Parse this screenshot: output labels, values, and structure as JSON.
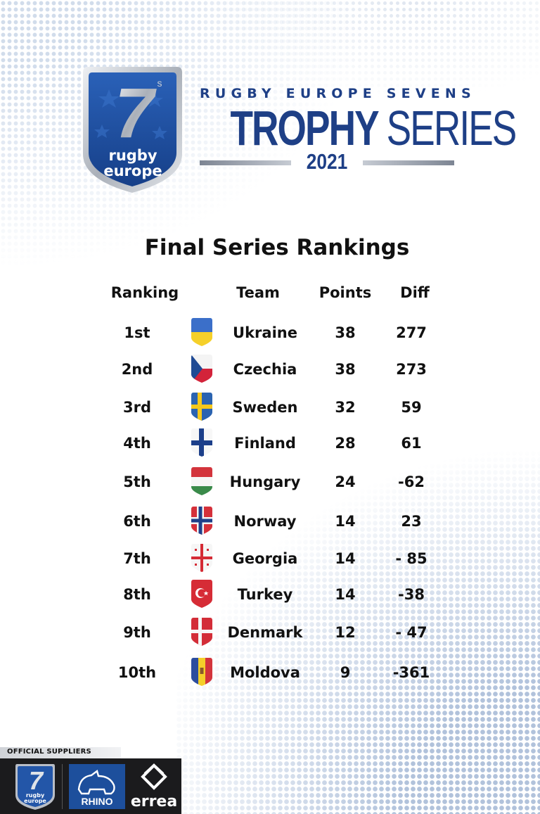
{
  "brand": {
    "badge_numeral": "7",
    "badge_superscript": "s",
    "badge_line1": "rugby",
    "badge_line2": "europe",
    "series_kicker": "RUGBY EUROPE SEVENS",
    "title_bold": "TROPHY",
    "title_light": "SERIES",
    "year": "2021"
  },
  "page_title": "Final Series Rankings",
  "table": {
    "headers": {
      "ranking": "Ranking",
      "team": "Team",
      "points": "Points",
      "diff": "Diff"
    },
    "rows": [
      {
        "rank": "1st",
        "team": "Ukraine",
        "points": "38",
        "diff": "277",
        "flag": "ukraine-flag"
      },
      {
        "rank": "2nd",
        "team": "Czechia",
        "points": "38",
        "diff": "273",
        "flag": "czechia-flag"
      },
      {
        "rank": "3rd",
        "team": "Sweden",
        "points": "32",
        "diff": "59",
        "flag": "sweden-flag"
      },
      {
        "rank": "4th",
        "team": "Finland",
        "points": "28",
        "diff": "61",
        "flag": "finland-flag"
      },
      {
        "rank": "5th",
        "team": "Hungary",
        "points": "24",
        "diff": "-62",
        "flag": "hungary-flag"
      },
      {
        "rank": "6th",
        "team": "Norway",
        "points": "14",
        "diff": "23",
        "flag": "norway-flag"
      },
      {
        "rank": "7th",
        "team": "Georgia",
        "points": "14",
        "diff": "- 85",
        "flag": "georgia-flag"
      },
      {
        "rank": "8th",
        "team": "Turkey",
        "points": "14",
        "diff": "-38",
        "flag": "turkey-flag"
      },
      {
        "rank": "9th",
        "team": "Denmark",
        "points": "12",
        "diff": "- 47",
        "flag": "denmark-flag"
      },
      {
        "rank": "10th",
        "team": "Moldova",
        "points": "9",
        "diff": "-361",
        "flag": "moldova-flag"
      }
    ]
  },
  "suppliers": {
    "label": "OFFICIAL SUPPLIERS",
    "logos": [
      {
        "name": "rugby-europe-sevens-logo",
        "line1": "rugby",
        "line2": "europe",
        "numeral": "7"
      },
      {
        "name": "rhino-logo",
        "text": "RHINO"
      },
      {
        "name": "errea-logo",
        "text": "errea"
      }
    ]
  },
  "colors": {
    "brand_blue": "#1e3f86",
    "badge_blue": "#1f4fa3",
    "badge_silver": "#b9bec6",
    "text": "#111111",
    "dots": "#a9bcd8"
  }
}
